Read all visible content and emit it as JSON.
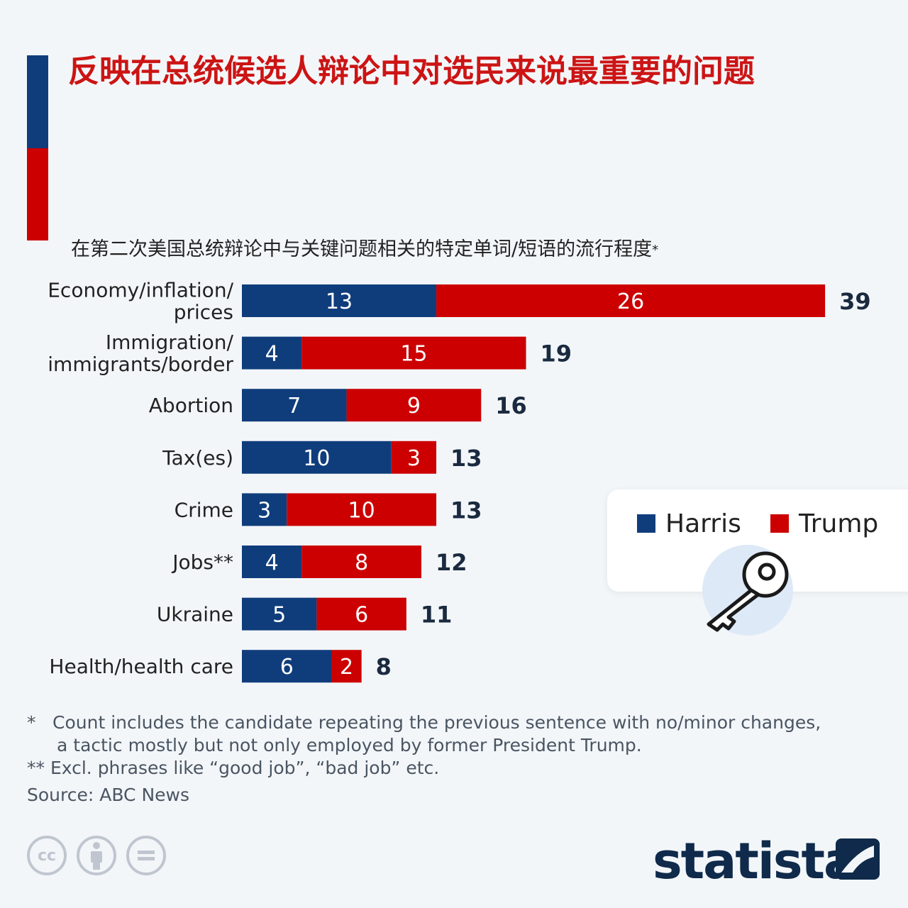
{
  "title": "反映在总统候选人辩论中对选民来说最重要的问题",
  "subtitle": "在第二次美国总统辩论中与关键问题相关的特定单词/短语的流行程度",
  "subtitle_mark": "*",
  "colors": {
    "harris": "#0f3d7c",
    "trump": "#cc0000",
    "title": "#cc1414"
  },
  "legend": [
    {
      "label": "Harris",
      "color": "#0f3d7c"
    },
    {
      "label": "Trump",
      "color": "#cc0000"
    }
  ],
  "legend_icon": "key-icon",
  "chart_data": {
    "type": "bar",
    "orientation": "horizontal",
    "stacked": true,
    "categories": [
      [
        "Economy/inflation/",
        "prices"
      ],
      [
        "Immigration/",
        "immigrants/border"
      ],
      [
        "Abortion"
      ],
      [
        "Tax(es)"
      ],
      [
        "Crime"
      ],
      [
        "Jobs**"
      ],
      [
        "Ukraine"
      ],
      [
        "Health/health care"
      ]
    ],
    "series": [
      {
        "name": "Harris",
        "values": [
          13,
          4,
          7,
          10,
          3,
          4,
          5,
          6
        ]
      },
      {
        "name": "Trump",
        "values": [
          26,
          15,
          9,
          3,
          10,
          8,
          6,
          2
        ]
      }
    ],
    "totals": [
      39,
      19,
      16,
      13,
      13,
      12,
      11,
      8
    ],
    "xlim": [
      0,
      39
    ],
    "grid": false,
    "legend_position": "right"
  },
  "footnotes": {
    "f1_mark": "*",
    "f1_line1": "Count includes the candidate repeating the previous sentence with no/minor changes,",
    "f1_line2": "a tactic mostly but not only employed by former President Trump.",
    "f2_mark": "**",
    "f2_text": "Excl. phrases like “good job”, “bad job” etc.",
    "source": "Source: ABC News"
  },
  "license_icons": [
    "cc-icon",
    "attribution-icon",
    "no-derivatives-icon"
  ],
  "brand": "statista"
}
